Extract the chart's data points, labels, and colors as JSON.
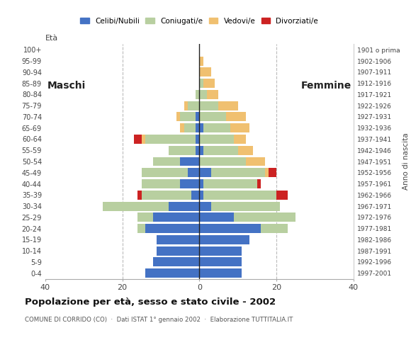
{
  "age_groups": [
    "0-4",
    "5-9",
    "10-14",
    "15-19",
    "20-24",
    "25-29",
    "30-34",
    "35-39",
    "40-44",
    "45-49",
    "50-54",
    "55-59",
    "60-64",
    "65-69",
    "70-74",
    "75-79",
    "80-84",
    "85-89",
    "90-94",
    "95-99",
    "100+"
  ],
  "birth_years": [
    "1997-2001",
    "1992-1996",
    "1987-1991",
    "1982-1986",
    "1977-1981",
    "1972-1976",
    "1967-1971",
    "1962-1966",
    "1957-1961",
    "1952-1956",
    "1947-1951",
    "1942-1946",
    "1937-1941",
    "1932-1936",
    "1927-1931",
    "1922-1926",
    "1917-1921",
    "1912-1916",
    "1907-1911",
    "1902-1906",
    "1901 o prima"
  ],
  "maschi": {
    "celibi": [
      14,
      12,
      11,
      11,
      14,
      12,
      8,
      2,
      5,
      3,
      5,
      1,
      1,
      1,
      1,
      0,
      0,
      0,
      0,
      0,
      0
    ],
    "coniugati": [
      0,
      0,
      0,
      0,
      2,
      4,
      17,
      13,
      10,
      12,
      7,
      7,
      13,
      3,
      4,
      3,
      1,
      0,
      0,
      0,
      0
    ],
    "vedovi": [
      0,
      0,
      0,
      0,
      0,
      0,
      0,
      0,
      0,
      0,
      0,
      0,
      1,
      1,
      1,
      1,
      0,
      0,
      0,
      0,
      0
    ],
    "divorziati": [
      0,
      0,
      0,
      0,
      0,
      0,
      0,
      1,
      0,
      0,
      0,
      0,
      2,
      0,
      0,
      0,
      0,
      0,
      0,
      0,
      0
    ]
  },
  "femmine": {
    "nubili": [
      11,
      11,
      11,
      13,
      16,
      9,
      3,
      1,
      1,
      3,
      0,
      1,
      0,
      1,
      0,
      0,
      0,
      0,
      0,
      0,
      0
    ],
    "coniugate": [
      0,
      0,
      0,
      0,
      7,
      16,
      18,
      19,
      14,
      14,
      12,
      9,
      9,
      7,
      7,
      5,
      2,
      1,
      0,
      0,
      0
    ],
    "vedove": [
      0,
      0,
      0,
      0,
      0,
      0,
      0,
      0,
      0,
      1,
      5,
      4,
      3,
      5,
      5,
      5,
      3,
      3,
      3,
      1,
      0
    ],
    "divorziate": [
      0,
      0,
      0,
      0,
      0,
      0,
      0,
      3,
      1,
      2,
      0,
      0,
      0,
      0,
      0,
      0,
      0,
      0,
      0,
      0,
      0
    ]
  },
  "colors": {
    "celibi": "#4472c4",
    "coniugati": "#b8cfa0",
    "vedovi": "#f0c070",
    "divorziati": "#cc2222"
  },
  "xlim": 40,
  "title": "Popolazione per età, sesso e stato civile - 2002",
  "subtitle": "COMUNE DI CORRIDO (CO)  ·  Dati ISTAT 1° gennaio 2002  ·  Elaborazione TUTTITALIA.IT",
  "ylabel_left": "Età",
  "ylabel_right": "Anno di nascita",
  "label_maschi": "Maschi",
  "label_femmine": "Femmine",
  "legend_labels": [
    "Celibi/Nubili",
    "Coniugati/e",
    "Vedovi/e",
    "Divorziati/e"
  ],
  "bg_color": "#ffffff",
  "grid_color": "#bbbbbb"
}
